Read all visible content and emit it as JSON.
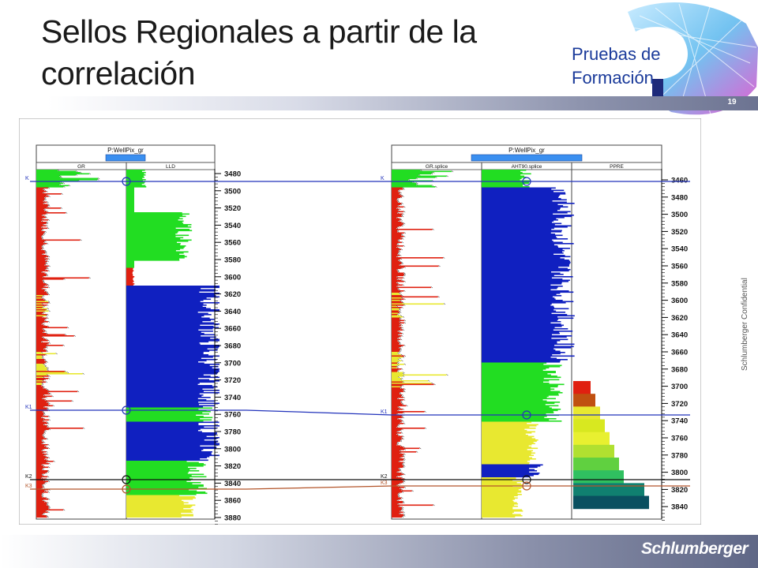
{
  "slide": {
    "title_line1": "Sellos Regionales a partir de la",
    "title_line2": "correlación",
    "logo_line1": "Pruebas de",
    "logo_line2": "Formación",
    "page_number": "19",
    "confidential": "Schlumberger Confidential",
    "brand": "Schlumberger"
  },
  "wells": [
    {
      "header": "P:WellPix_gr",
      "tracks": [
        "GR",
        "LLD"
      ],
      "depths": [
        "3480",
        "3500",
        "3520",
        "3540",
        "3560",
        "3580",
        "3600",
        "3620",
        "3640",
        "3660",
        "3680",
        "3700",
        "3720",
        "3740",
        "3760",
        "3780",
        "3800",
        "3820",
        "3840",
        "3860",
        "3880"
      ],
      "markers": [
        "K",
        "K1",
        "K2",
        "K3"
      ]
    },
    {
      "header": "P:WellPix_gr",
      "tracks": [
        "GR.splice",
        "AHT90.splice",
        "PPRE"
      ],
      "depths": [
        "3460",
        "3480",
        "3500",
        "3520",
        "3540",
        "3560",
        "3580",
        "3600",
        "3620",
        "3640",
        "3660",
        "3680",
        "3700",
        "3720",
        "3740",
        "3760",
        "3780",
        "3800",
        "3820",
        "3840"
      ],
      "markers": [
        "K",
        "K1",
        "K2",
        "K3"
      ]
    }
  ],
  "colors": {
    "correlation_blue": "#2233bb",
    "k2_black": "#111111",
    "k3_brown": "#b3552a",
    "gr_red": "#e02010",
    "res_green": "#22dd22",
    "res_blue": "#1020c0",
    "res_yellow": "#e8e830"
  }
}
